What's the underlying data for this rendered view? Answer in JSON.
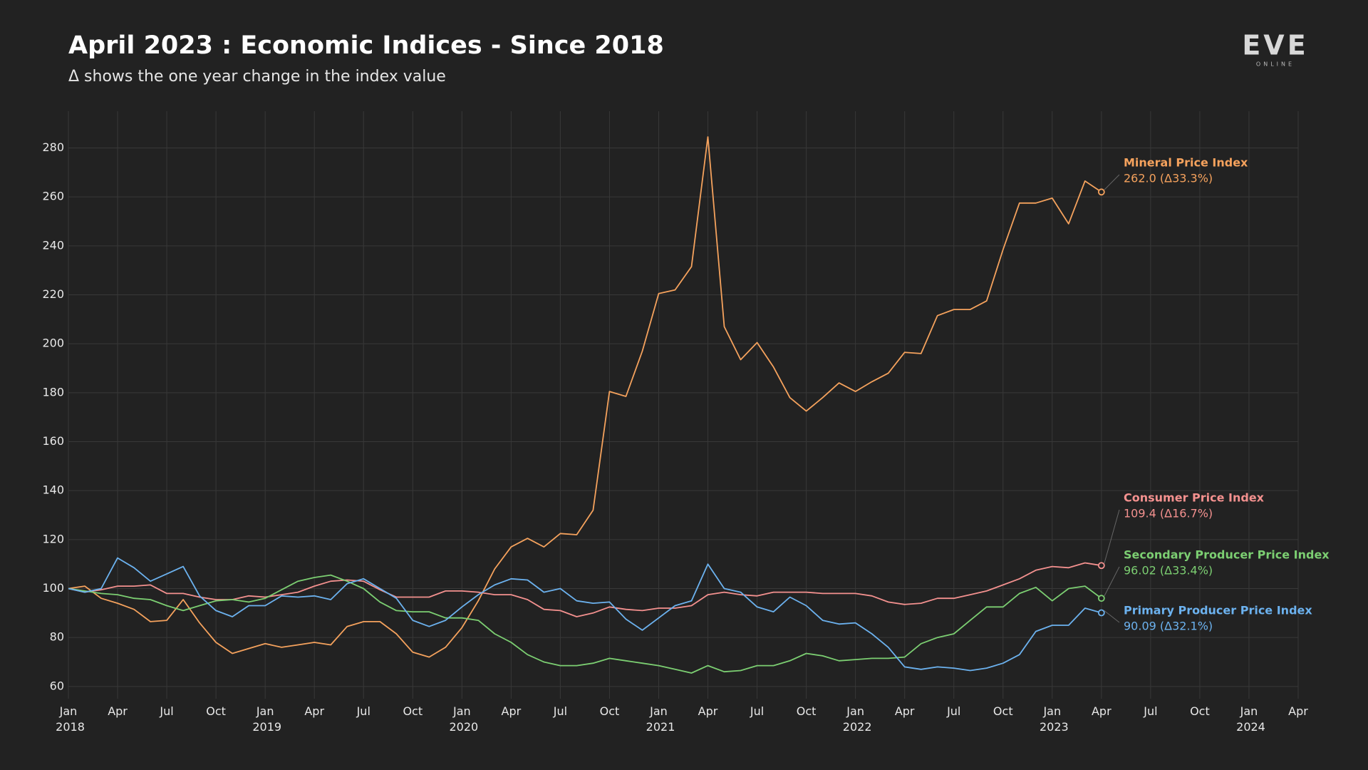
{
  "chart_data": {
    "type": "line",
    "title": "April 2023 : Economic Indices - Since 2018",
    "subtitle": "Δ shows the one year change in the index value",
    "logo": {
      "text": "EVE",
      "sub": "ONLINE"
    },
    "x": [
      "2018-01",
      "2018-02",
      "2018-03",
      "2018-04",
      "2018-05",
      "2018-06",
      "2018-07",
      "2018-08",
      "2018-09",
      "2018-10",
      "2018-11",
      "2018-12",
      "2019-01",
      "2019-02",
      "2019-03",
      "2019-04",
      "2019-05",
      "2019-06",
      "2019-07",
      "2019-08",
      "2019-09",
      "2019-10",
      "2019-11",
      "2019-12",
      "2020-01",
      "2020-02",
      "2020-03",
      "2020-04",
      "2020-05",
      "2020-06",
      "2020-07",
      "2020-08",
      "2020-09",
      "2020-10",
      "2020-11",
      "2020-12",
      "2021-01",
      "2021-02",
      "2021-03",
      "2021-04",
      "2021-05",
      "2021-06",
      "2021-07",
      "2021-08",
      "2021-09",
      "2021-10",
      "2021-11",
      "2021-12",
      "2022-01",
      "2022-02",
      "2022-03",
      "2022-04",
      "2022-05",
      "2022-06",
      "2022-07",
      "2022-08",
      "2022-09",
      "2022-10",
      "2022-11",
      "2022-12",
      "2023-01",
      "2023-02",
      "2023-03",
      "2023-04"
    ],
    "xlim": [
      "2018-01",
      "2024-04"
    ],
    "xticks": [
      {
        "value": "2018-01",
        "label": "Jan 2018"
      },
      {
        "value": "2018-04",
        "label": "Apr"
      },
      {
        "value": "2018-07",
        "label": "Jul"
      },
      {
        "value": "2018-10",
        "label": "Oct"
      },
      {
        "value": "2019-01",
        "label": "Jan 2019"
      },
      {
        "value": "2019-04",
        "label": "Apr"
      },
      {
        "value": "2019-07",
        "label": "Jul"
      },
      {
        "value": "2019-10",
        "label": "Oct"
      },
      {
        "value": "2020-01",
        "label": "Jan 2020"
      },
      {
        "value": "2020-04",
        "label": "Apr"
      },
      {
        "value": "2020-07",
        "label": "Jul"
      },
      {
        "value": "2020-10",
        "label": "Oct"
      },
      {
        "value": "2021-01",
        "label": "Jan 2021"
      },
      {
        "value": "2021-04",
        "label": "Apr"
      },
      {
        "value": "2021-07",
        "label": "Jul"
      },
      {
        "value": "2021-10",
        "label": "Oct"
      },
      {
        "value": "2022-01",
        "label": "Jan 2022"
      },
      {
        "value": "2022-04",
        "label": "Apr"
      },
      {
        "value": "2022-07",
        "label": "Jul"
      },
      {
        "value": "2022-10",
        "label": "Oct"
      },
      {
        "value": "2023-01",
        "label": "Jan 2023"
      },
      {
        "value": "2023-04",
        "label": "Apr"
      },
      {
        "value": "2023-07",
        "label": "Jul"
      },
      {
        "value": "2023-10",
        "label": "Oct"
      },
      {
        "value": "2024-01",
        "label": "Jan 2024"
      },
      {
        "value": "2024-04",
        "label": "Apr"
      }
    ],
    "ylim": [
      55,
      295
    ],
    "yticks": [
      60,
      80,
      100,
      120,
      140,
      160,
      180,
      200,
      220,
      240,
      260,
      280
    ],
    "grid": true,
    "series": [
      {
        "name": "Mineral Price Index",
        "color": "#f5a25d",
        "end_label": "262.0 (Δ33.3%)",
        "values": [
          100,
          101,
          96,
          94,
          91.5,
          86.5,
          87,
          95.5,
          86,
          78,
          73.5,
          75.5,
          77.5,
          76,
          77,
          78,
          77,
          84.5,
          86.5,
          86.5,
          81.5,
          74,
          72,
          76,
          84,
          95,
          108,
          117,
          120.5,
          117,
          122.5,
          122,
          132,
          180.5,
          178.5,
          197,
          220.5,
          222,
          231.5,
          284.5,
          207,
          193.5,
          200.5,
          190.5,
          178,
          172.5,
          178,
          184,
          180.5,
          184.5,
          188,
          196.5,
          196,
          211.5,
          214,
          214,
          217.5,
          238.5,
          257.5,
          257.5,
          259.5,
          249,
          266.5,
          262
        ]
      },
      {
        "name": "Consumer Price Index",
        "color": "#f4918f",
        "end_label": "109.4 (Δ16.7%)",
        "values": [
          100,
          98.5,
          99.5,
          101,
          101,
          101.5,
          98,
          98,
          96.5,
          95.5,
          95.5,
          97,
          96.5,
          97.5,
          98.5,
          101,
          103,
          103.5,
          103,
          99.5,
          96.5,
          96.5,
          96.5,
          99,
          99,
          98.5,
          97.5,
          97.5,
          95.5,
          91.5,
          91,
          88.5,
          90,
          92.5,
          91.5,
          91,
          92,
          92,
          93,
          97.5,
          98.5,
          97.5,
          97,
          98.5,
          98.5,
          98.5,
          98,
          98,
          98,
          97,
          94.5,
          93.5,
          94,
          96,
          96,
          97.5,
          99,
          101.5,
          104,
          107.5,
          109,
          108.5,
          110.5,
          109.4
        ]
      },
      {
        "name": "Secondary Producer Price Index",
        "color": "#7ccf72",
        "end_label": "96.02 (Δ33.4%)",
        "values": [
          100,
          99,
          98,
          97.5,
          96,
          95.5,
          93,
          91,
          93,
          95,
          95.5,
          94.5,
          96,
          99.5,
          103,
          104.5,
          105.5,
          103,
          100,
          94.5,
          91,
          90.5,
          90.5,
          88,
          88,
          87,
          81.5,
          78,
          73,
          70,
          68.5,
          68.5,
          69.5,
          71.5,
          70.5,
          69.5,
          68.5,
          67,
          65.5,
          68.5,
          66,
          66.5,
          68.5,
          68.5,
          70.5,
          73.5,
          72.5,
          70.5,
          71,
          71.5,
          71.5,
          72,
          77.5,
          80,
          81.5,
          87,
          92.5,
          92.5,
          98,
          100.5,
          95,
          100,
          101,
          96.02
        ]
      },
      {
        "name": "Primary Producer Price Index",
        "color": "#6cb2ef",
        "end_label": "90.09 (Δ32.1%)",
        "values": [
          100,
          98.5,
          100,
          112.5,
          108.5,
          103,
          106,
          109,
          97,
          91,
          88.5,
          93,
          93,
          97,
          96.5,
          97,
          95.5,
          102,
          104,
          100,
          96,
          87,
          84.5,
          87,
          92.5,
          97.5,
          101.5,
          104,
          103.5,
          98.5,
          100,
          95,
          94,
          94.5,
          87.5,
          83,
          88,
          93,
          95,
          110,
          100,
          98.5,
          92.5,
          90.5,
          96.5,
          93,
          87,
          85.5,
          86,
          81.5,
          76,
          68,
          67,
          68,
          67.5,
          66.5,
          67.5,
          69.5,
          73,
          82.5,
          85,
          85,
          92,
          90.09
        ]
      }
    ]
  }
}
